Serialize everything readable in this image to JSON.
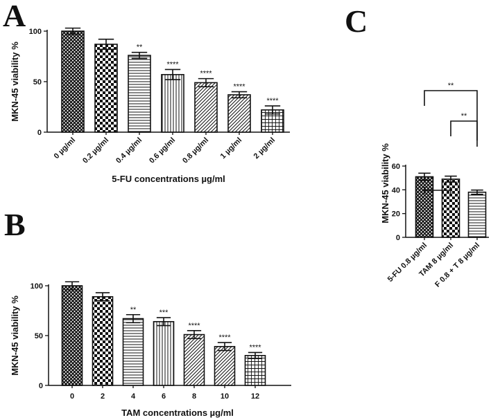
{
  "panels": {
    "A": {
      "letter": "A"
    },
    "B": {
      "letter": "B"
    },
    "C": {
      "letter": "C"
    }
  },
  "chart_data": [
    {
      "id": "A",
      "type": "bar",
      "title": "",
      "xlabel": "5-FU concentrations µg/ml",
      "ylabel": "MKN-45 viability %",
      "ylim": [
        0,
        100
      ],
      "yticks": [
        0,
        50,
        100
      ],
      "categories": [
        "0 µg/ml",
        "0.2 µg/ml",
        "0.4 µg/ml",
        "0.6 µg/ml",
        "0.8 µg/ml",
        "1 µg/ml",
        "2 µg/ml"
      ],
      "values": [
        100,
        87,
        76,
        57,
        49,
        37,
        22
      ],
      "errors": [
        3,
        5,
        3,
        5,
        4,
        3,
        4
      ],
      "significance": [
        "",
        "",
        "**",
        "****",
        "****",
        "****",
        "****"
      ],
      "patterns": [
        "diamond",
        "checker",
        "hlines",
        "vlines",
        "diag",
        "diag",
        "grid"
      ]
    },
    {
      "id": "B",
      "type": "bar",
      "title": "",
      "xlabel": "TAM concentrations µg/ml",
      "ylabel": "MKN-45 viability %",
      "ylim": [
        0,
        100
      ],
      "yticks": [
        0,
        50,
        100
      ],
      "categories": [
        "0",
        "2",
        "4",
        "6",
        "8",
        "10",
        "12"
      ],
      "values": [
        100,
        89,
        67,
        64,
        51,
        39,
        30
      ],
      "errors": [
        4,
        4,
        4,
        4,
        4,
        4,
        3
      ],
      "significance": [
        "",
        "",
        "**",
        "***",
        "****",
        "****",
        "****"
      ],
      "patterns": [
        "diamond",
        "checker",
        "hlines",
        "vlines",
        "diag",
        "diag",
        "grid"
      ]
    },
    {
      "id": "C",
      "type": "bar",
      "title": "",
      "xlabel": "",
      "ylabel": "MKN-45 viability %",
      "ylim": [
        0,
        60
      ],
      "yticks": [
        0,
        20,
        40,
        60
      ],
      "categories": [
        "5-FU 0.8 µg/ml",
        "TAM 8 µg/ml",
        "F 0.8 + T 8 µg/ml"
      ],
      "values": [
        51,
        49,
        38
      ],
      "errors": [
        3,
        2.5,
        1.8
      ],
      "patterns": [
        "diamond",
        "checker",
        "hlines"
      ],
      "comparisons": [
        {
          "from": 0,
          "to": 1,
          "label": ""
        },
        {
          "from": 1,
          "to": 2,
          "label": "**"
        },
        {
          "from": 0,
          "to": 2,
          "label": "**"
        }
      ]
    }
  ]
}
